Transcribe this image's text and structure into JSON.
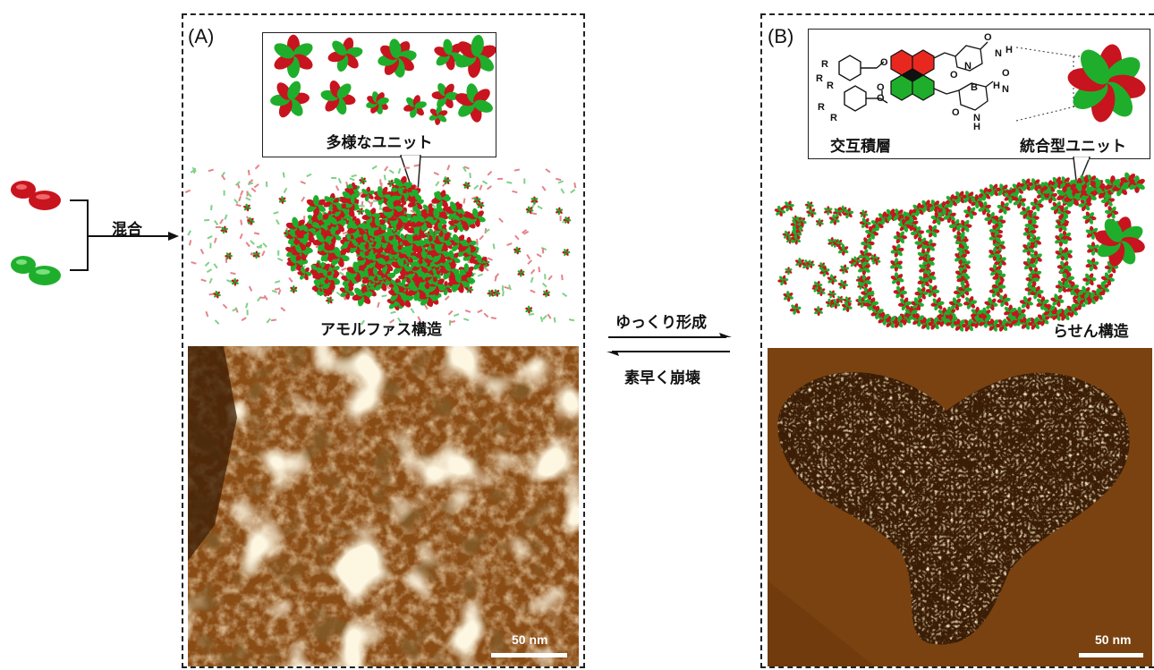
{
  "left_side": {
    "mix_label": "混合"
  },
  "panel_a": {
    "label": "(A)",
    "callout_caption": "多様なユニット",
    "structure_label": "アモルファス構造",
    "scale_bar": "50 nm"
  },
  "center": {
    "forward_label": "ゆっくり形成",
    "reverse_label": "素早く崩壊"
  },
  "panel_b": {
    "label": "(B)",
    "caption_left": "交互積層",
    "caption_right": "統合型ユニット",
    "structure_label": "らせん構造",
    "scale_bar": "50 nm",
    "molecule_atoms": [
      "R",
      "R",
      "R",
      "R",
      "R",
      "O",
      "O",
      "O",
      "O",
      "O",
      "O",
      "N",
      "H",
      "N",
      "H",
      "N",
      "N",
      "H",
      "O",
      "B"
    ]
  },
  "colors": {
    "red": "#c8141e",
    "green": "#1fae2c",
    "afm_dark": "#5a2e08",
    "afm_light": "#f5e3b6"
  }
}
